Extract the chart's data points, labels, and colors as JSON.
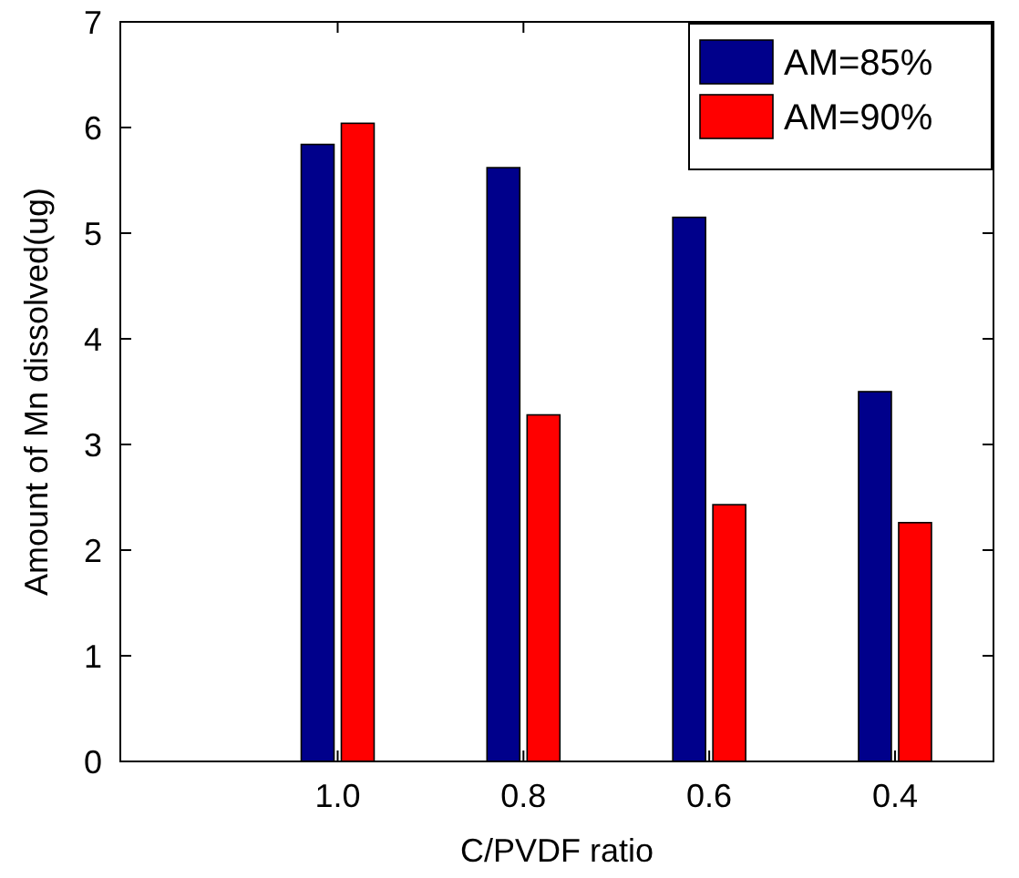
{
  "chart_data": {
    "type": "bar",
    "xlabel": "C/PVDF ratio",
    "ylabel": "Amount of Mn dissolved(ug)",
    "categories": [
      "1.0",
      "0.8",
      "0.6",
      "0.4"
    ],
    "series": [
      {
        "name": "AM=85%",
        "color": "#00008b",
        "values": [
          5.84,
          5.62,
          5.15,
          3.5
        ]
      },
      {
        "name": "AM=90%",
        "color": "#ff0000",
        "values": [
          6.04,
          3.28,
          2.43,
          2.26
        ]
      }
    ],
    "ylim": [
      0,
      7
    ],
    "yticks": [
      0,
      1,
      2,
      3,
      4,
      5,
      6,
      7
    ],
    "grid": false,
    "legend": "top right"
  }
}
